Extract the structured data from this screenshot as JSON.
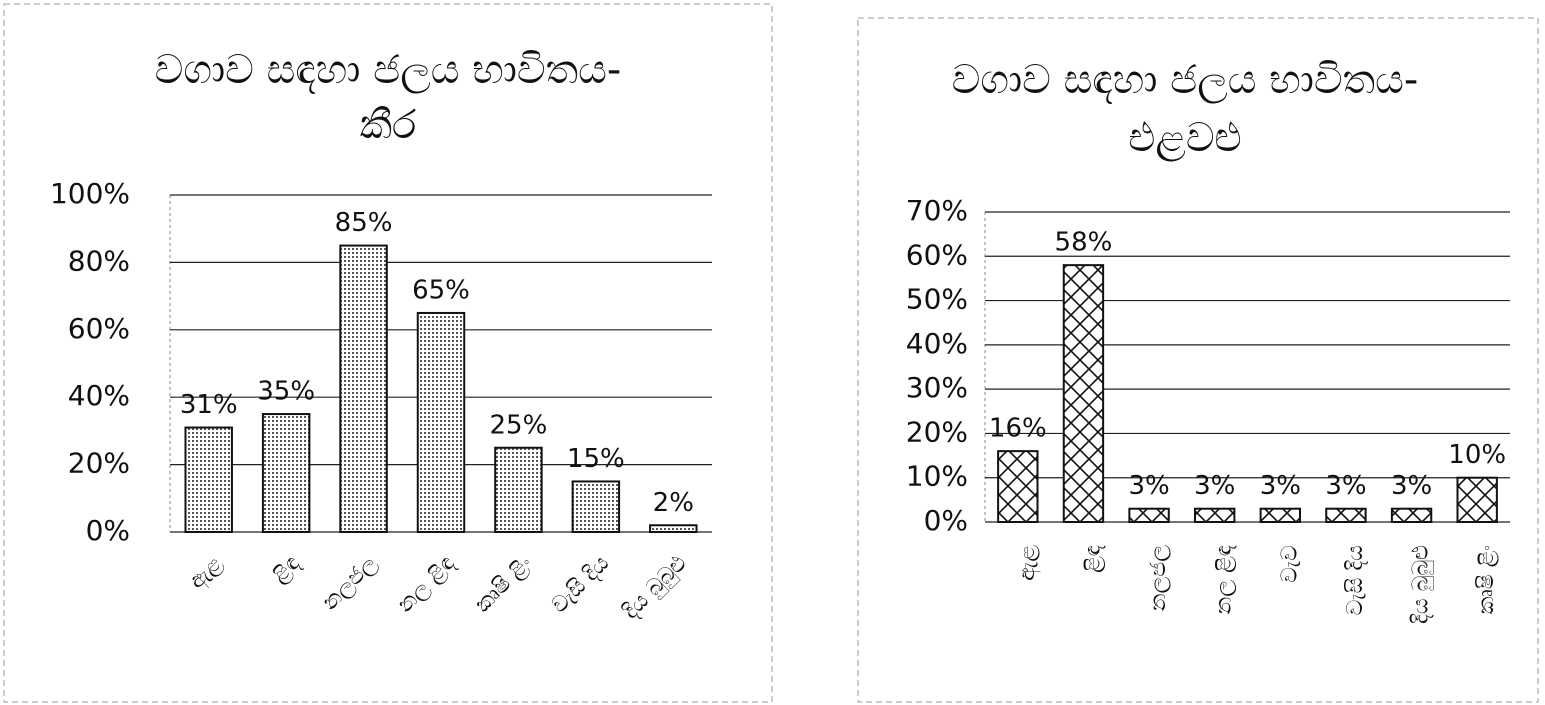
{
  "chart_data": [
    {
      "type": "bar",
      "title": "වගාව සඳහා ජලය භාවිතය-කීර",
      "categories": [
        "ඇළ",
        "ළිඳ",
        "නලජල",
        "නල ළිඳ",
        "කෘෂි ළිං",
        "වැසි දිය",
        "දිය බුබුළු"
      ],
      "values": [
        31,
        35,
        85,
        65,
        25,
        15,
        2
      ],
      "value_labels": [
        "31%",
        "35%",
        "85%",
        "65%",
        "25%",
        "15%",
        "2%"
      ],
      "ylim": [
        0,
        100
      ],
      "yticks": [
        {
          "value": 0,
          "label": "0%"
        },
        {
          "value": 20,
          "label": "20%"
        },
        {
          "value": 40,
          "label": "40%"
        },
        {
          "value": 60,
          "label": "60%"
        },
        {
          "value": 80,
          "label": "80%"
        },
        {
          "value": 100,
          "label": "100%"
        }
      ],
      "grid": true
    },
    {
      "type": "bar",
      "title": "වගාව සඳහා ජලය භාවිතය-එළවළු",
      "categories": [
        "ඇළ",
        "ළිඳ",
        "නලජල",
        "නල ළිඳ",
        "වැව",
        "වැසි දිය",
        "දිය බුබුළු",
        "කෘෂි ළිං"
      ],
      "values": [
        16,
        58,
        3,
        3,
        3,
        3,
        3,
        10
      ],
      "value_labels": [
        "16%",
        "58%",
        "3%",
        "3%",
        "3%",
        "3%",
        "3%",
        "10%"
      ],
      "ylim": [
        0,
        70
      ],
      "yticks": [
        {
          "value": 0,
          "label": "0%"
        },
        {
          "value": 10,
          "label": "10%"
        },
        {
          "value": 20,
          "label": "20%"
        },
        {
          "value": 30,
          "label": "30%"
        },
        {
          "value": 40,
          "label": "40%"
        },
        {
          "value": 50,
          "label": "50%"
        },
        {
          "value": 60,
          "label": "60%"
        },
        {
          "value": 70,
          "label": "70%"
        }
      ],
      "grid": true
    }
  ]
}
